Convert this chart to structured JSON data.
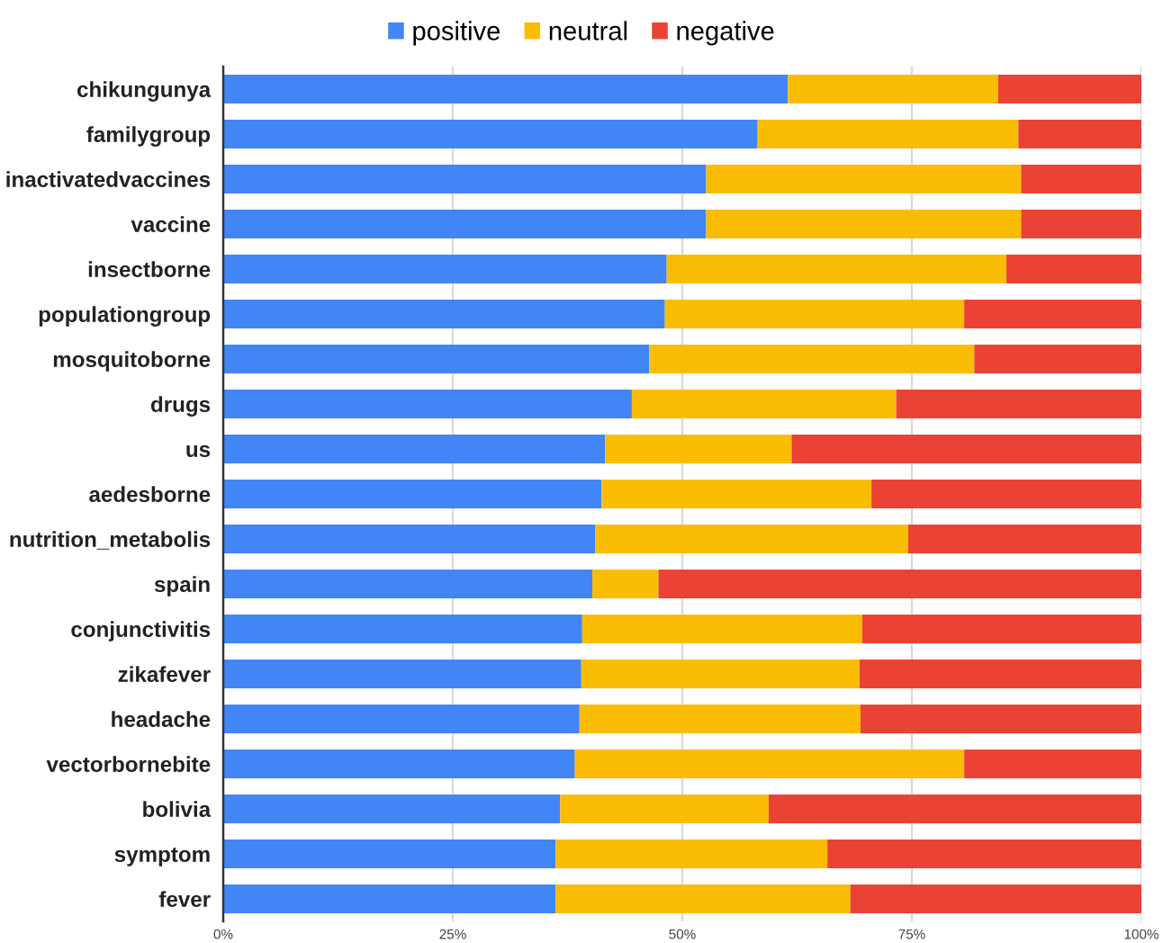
{
  "chart_data": {
    "type": "bar",
    "orientation": "horizontal",
    "stacked": true,
    "categories": [
      "chikungunya",
      "familygroup",
      "inactivatedvaccines",
      "vaccine",
      "insectborne",
      "populationgroup",
      "mosquitoborne",
      "drugs",
      "us",
      "aedesborne",
      "nutrition_metabolis",
      "spain",
      "conjunctivitis",
      "zikafever",
      "headache",
      "vectorbornebite",
      "bolivia",
      "symptom",
      "fever"
    ],
    "series": [
      {
        "name": "positive",
        "color": "#4285f4",
        "values": [
          61.5,
          58.2,
          52.6,
          52.6,
          48.3,
          48.1,
          46.4,
          44.5,
          41.6,
          41.2,
          40.5,
          40.2,
          39.1,
          39.0,
          38.8,
          38.3,
          36.7,
          36.2,
          36.2
        ]
      },
      {
        "name": "neutral",
        "color": "#fbbc04",
        "values": [
          22.9,
          28.4,
          34.3,
          34.3,
          37.0,
          32.6,
          35.4,
          28.8,
          20.3,
          29.4,
          34.1,
          7.2,
          30.5,
          30.3,
          30.6,
          42.4,
          22.7,
          29.6,
          32.1
        ]
      },
      {
        "name": "negative",
        "color": "#ea4335",
        "values": [
          15.6,
          13.4,
          13.1,
          13.1,
          14.7,
          19.3,
          18.2,
          26.7,
          38.1,
          29.4,
          25.4,
          52.6,
          30.4,
          30.7,
          30.6,
          19.3,
          40.6,
          34.2,
          31.7
        ]
      }
    ],
    "xlim": [
      0,
      100
    ],
    "xticks": [
      {
        "value": 0,
        "label": "0%"
      },
      {
        "value": 25,
        "label": "25%"
      },
      {
        "value": 50,
        "label": "50%"
      },
      {
        "value": 75,
        "label": "75%"
      },
      {
        "value": 100,
        "label": "100%"
      }
    ],
    "grid": "x",
    "legend": "top"
  }
}
